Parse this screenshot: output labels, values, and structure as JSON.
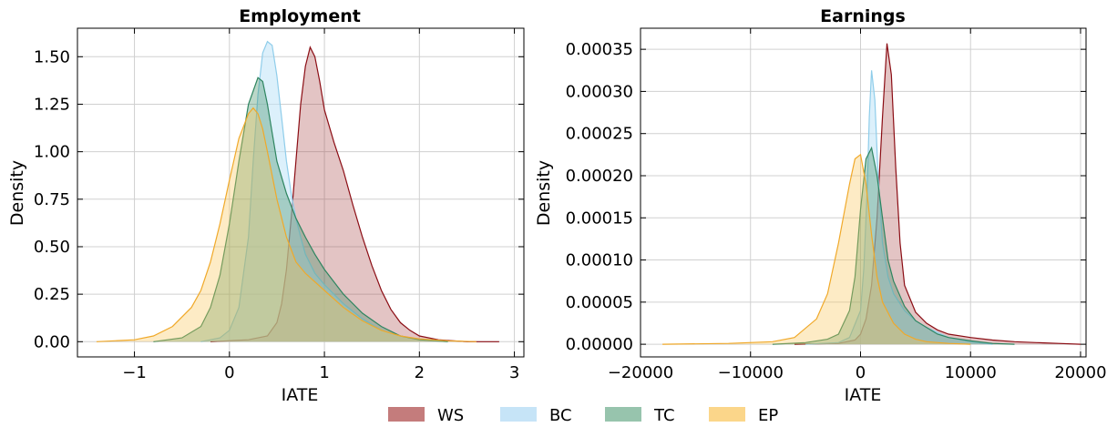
{
  "chart_data": [
    {
      "type": "area",
      "title": "Employment",
      "xlabel": "IATE",
      "ylabel": "Density",
      "xlim": [
        -1.6,
        3.1
      ],
      "ylim": [
        -0.08,
        1.65
      ],
      "xticks": [
        -1,
        0,
        1,
        2,
        3
      ],
      "xtick_labels": [
        "−1",
        "0",
        "1",
        "2",
        "3"
      ],
      "yticks": [
        0.0,
        0.25,
        0.5,
        0.75,
        1.0,
        1.25,
        1.5
      ],
      "ytick_labels": [
        "0.00",
        "0.25",
        "0.50",
        "0.75",
        "1.00",
        "1.25",
        "1.50"
      ],
      "grid": true,
      "series": [
        {
          "name": "WS",
          "x": [
            -0.2,
            0.2,
            0.4,
            0.5,
            0.55,
            0.6,
            0.65,
            0.7,
            0.75,
            0.8,
            0.85,
            0.9,
            0.95,
            1.0,
            1.1,
            1.2,
            1.3,
            1.4,
            1.5,
            1.6,
            1.7,
            1.8,
            1.9,
            2.0,
            2.2,
            2.5,
            2.84
          ],
          "y": [
            0,
            0.01,
            0.03,
            0.1,
            0.2,
            0.38,
            0.65,
            0.95,
            1.25,
            1.45,
            1.55,
            1.5,
            1.37,
            1.22,
            1.05,
            0.9,
            0.72,
            0.55,
            0.4,
            0.27,
            0.17,
            0.1,
            0.06,
            0.03,
            0.01,
            0.0,
            0
          ]
        },
        {
          "name": "BC",
          "x": [
            -0.3,
            -0.1,
            0.0,
            0.1,
            0.2,
            0.25,
            0.3,
            0.35,
            0.4,
            0.45,
            0.5,
            0.55,
            0.6,
            0.65,
            0.7,
            0.75,
            0.8,
            0.9,
            1.0,
            1.2,
            1.4,
            1.6,
            1.8,
            2.0,
            2.3
          ],
          "y": [
            0,
            0.02,
            0.06,
            0.18,
            0.55,
            0.95,
            1.3,
            1.52,
            1.58,
            1.56,
            1.4,
            1.18,
            0.95,
            0.78,
            0.65,
            0.55,
            0.46,
            0.36,
            0.3,
            0.2,
            0.12,
            0.06,
            0.03,
            0.01,
            0
          ]
        },
        {
          "name": "TC",
          "x": [
            -0.8,
            -0.5,
            -0.3,
            -0.2,
            -0.1,
            0.0,
            0.1,
            0.2,
            0.3,
            0.35,
            0.4,
            0.45,
            0.5,
            0.6,
            0.7,
            0.8,
            0.9,
            1.0,
            1.2,
            1.4,
            1.6,
            1.8,
            2.0,
            2.3
          ],
          "y": [
            0,
            0.02,
            0.08,
            0.18,
            0.35,
            0.62,
            0.95,
            1.25,
            1.39,
            1.37,
            1.25,
            1.1,
            0.95,
            0.78,
            0.65,
            0.55,
            0.46,
            0.38,
            0.25,
            0.15,
            0.08,
            0.03,
            0.01,
            0
          ]
        },
        {
          "name": "EP",
          "x": [
            -1.4,
            -1.0,
            -0.8,
            -0.6,
            -0.4,
            -0.3,
            -0.2,
            -0.1,
            0.0,
            0.1,
            0.2,
            0.25,
            0.3,
            0.35,
            0.4,
            0.5,
            0.6,
            0.7,
            0.8,
            1.0,
            1.2,
            1.4,
            1.6,
            1.8,
            2.0,
            2.3,
            2.6
          ],
          "y": [
            0,
            0.01,
            0.03,
            0.08,
            0.18,
            0.27,
            0.42,
            0.62,
            0.85,
            1.07,
            1.2,
            1.23,
            1.2,
            1.12,
            1.0,
            0.75,
            0.55,
            0.42,
            0.36,
            0.27,
            0.18,
            0.11,
            0.06,
            0.03,
            0.015,
            0.005,
            0
          ]
        }
      ]
    },
    {
      "type": "area",
      "title": "Earnings",
      "xlabel": "IATE",
      "ylabel": "Density",
      "xlim": [
        -20000,
        20500
      ],
      "ylim": [
        -1.5e-05,
        0.000375
      ],
      "xticks": [
        -20000,
        -10000,
        0,
        10000,
        20000
      ],
      "xtick_labels": [
        "−20000",
        "−10000",
        "0",
        "10000",
        "20000"
      ],
      "yticks": [
        0,
        5e-05,
        0.0001,
        0.00015,
        0.0002,
        0.00025,
        0.0003,
        0.00035
      ],
      "ytick_labels": [
        "0.00000",
        "0.00005",
        "0.00010",
        "0.00015",
        "0.00020",
        "0.00025",
        "0.00030",
        "0.00035"
      ],
      "grid": true,
      "series": [
        {
          "name": "WS",
          "x": [
            -6000,
            -2000,
            -500,
            0,
            500,
            1000,
            1500,
            2000,
            2400,
            2800,
            3200,
            3600,
            4000,
            5000,
            6000,
            7000,
            8000,
            10000,
            12000,
            14000,
            16000,
            18000,
            20000
          ],
          "y": [
            0,
            1e-06,
            5e-06,
            1.2e-05,
            3e-05,
            7e-05,
            0.00015,
            0.00027,
            0.000357,
            0.00032,
            0.00021,
            0.00012,
            7e-05,
            3.8e-05,
            2.5e-05,
            1.7e-05,
            1.2e-05,
            8e-06,
            5e-06,
            3e-06,
            2e-06,
            1e-06,
            0
          ]
        },
        {
          "name": "BC",
          "x": [
            -5000,
            -2000,
            -1000,
            0,
            300,
            600,
            800,
            1000,
            1300,
            1600,
            2000,
            2500,
            3000,
            4000,
            5000,
            6000,
            8000,
            10000,
            12000
          ],
          "y": [
            0,
            2e-06,
            8e-06,
            4e-05,
            9e-05,
            0.00018,
            0.00027,
            0.000325,
            0.00029,
            0.0002,
            0.00012,
            8e-05,
            6e-05,
            4e-05,
            2.8e-05,
            2e-05,
            8e-06,
            3e-06,
            0
          ]
        },
        {
          "name": "TC",
          "x": [
            -8000,
            -5000,
            -3000,
            -2000,
            -1000,
            -500,
            0,
            500,
            1000,
            1500,
            2000,
            2500,
            3000,
            4000,
            5000,
            6000,
            7000,
            8000,
            10000,
            12000,
            14000
          ],
          "y": [
            0,
            2e-06,
            6e-06,
            1.2e-05,
            4e-05,
            8e-05,
            0.00016,
            0.00022,
            0.000233,
            0.0002,
            0.00015,
            0.0001,
            7.5e-05,
            4.5e-05,
            2.8e-05,
            2e-05,
            1.2e-05,
            8e-06,
            4e-06,
            1e-06,
            0
          ]
        },
        {
          "name": "EP",
          "x": [
            -18000,
            -12000,
            -8000,
            -6000,
            -4000,
            -3000,
            -2000,
            -1000,
            -500,
            0,
            500,
            1000,
            1500,
            2000,
            3000,
            4000,
            5000,
            6000,
            8000,
            10000
          ],
          "y": [
            0,
            1e-06,
            3e-06,
            8e-06,
            3e-05,
            6e-05,
            0.00012,
            0.00019,
            0.00022,
            0.000225,
            0.00019,
            0.00013,
            8e-05,
            5e-05,
            2.5e-05,
            1.2e-05,
            6e-06,
            3e-06,
            1e-06,
            0
          ]
        }
      ]
    }
  ],
  "legend": {
    "placement": "bottom-center",
    "items": [
      {
        "label": "WS",
        "color": "#c47c7c"
      },
      {
        "label": "BC",
        "color": "#c6e4f7"
      },
      {
        "label": "TC",
        "color": "#97c4ad"
      },
      {
        "label": "EP",
        "color": "#fbd68a"
      }
    ]
  },
  "colors": {
    "WS": {
      "line": "#8b0d14",
      "fill": "#a33b3b"
    },
    "BC": {
      "line": "#8fcdea",
      "fill": "#bfe3f7"
    },
    "TC": {
      "line": "#2e8560",
      "fill": "#3d8b62"
    },
    "EP": {
      "line": "#f0a92a",
      "fill": "#f8c75a"
    }
  }
}
